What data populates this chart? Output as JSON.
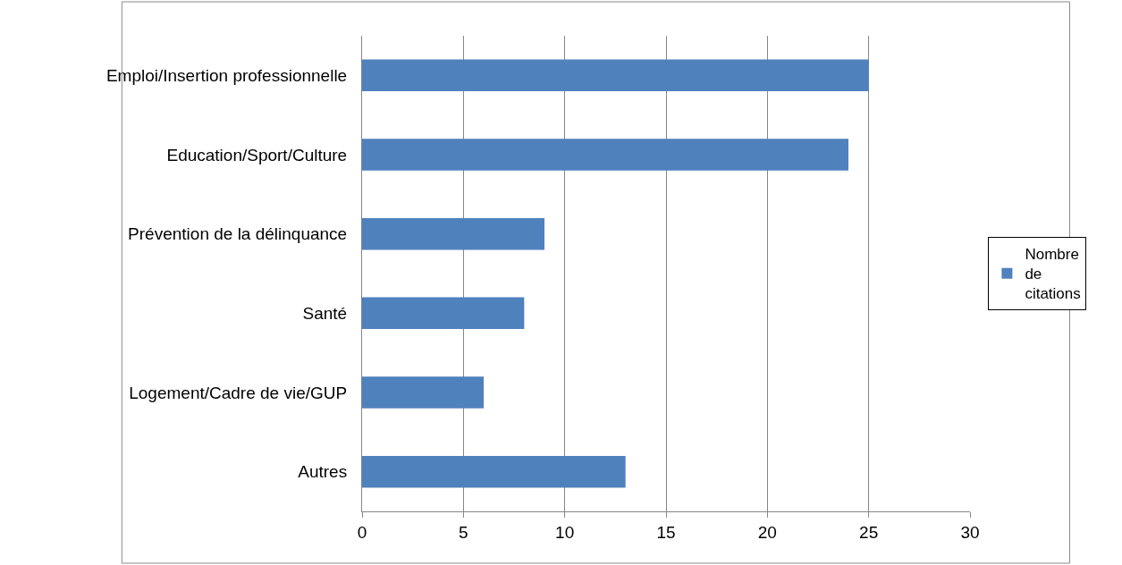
{
  "chart_data": {
    "type": "bar",
    "orientation": "horizontal",
    "categories": [
      "Emploi/Insertion professionnelle",
      "Education/Sport/Culture",
      "Prévention de la délinquance",
      "Santé",
      "Logement/Cadre de vie/GUP",
      "Autres"
    ],
    "series": [
      {
        "name": "Nombre de citations",
        "color": "#4f81bd",
        "values": [
          25,
          24,
          9,
          8,
          6,
          13
        ]
      }
    ],
    "xlim": [
      0,
      30
    ],
    "xticks": [
      0,
      5,
      10,
      15,
      20,
      25,
      30
    ],
    "grid": "x",
    "legend": "right"
  }
}
